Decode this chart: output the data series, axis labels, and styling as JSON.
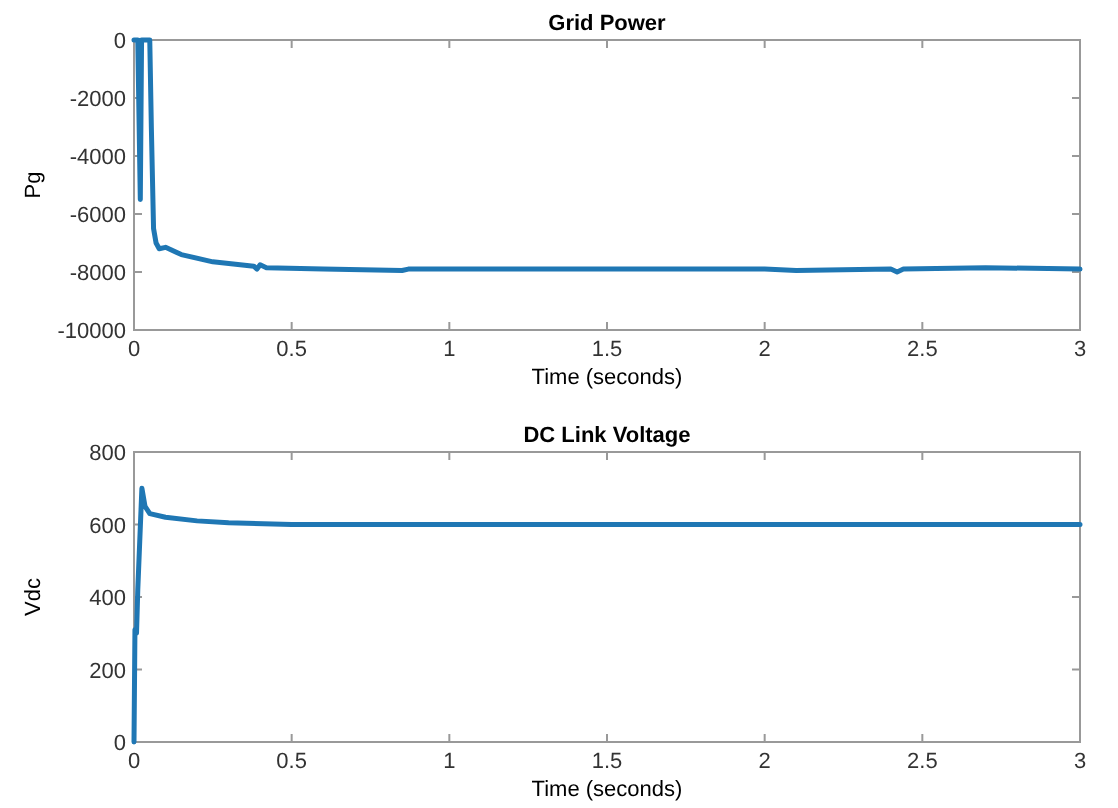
{
  "chart_data": [
    {
      "type": "line",
      "title": "Grid Power",
      "xlabel": "Time (seconds)",
      "ylabel": "Pg",
      "xlim": [
        0,
        3
      ],
      "xticks": [
        0,
        0.5,
        1,
        1.5,
        2,
        2.5,
        3
      ],
      "ylim": [
        -10000,
        0
      ],
      "yticks": [
        -10000,
        -8000,
        -6000,
        -4000,
        -2000,
        0
      ],
      "series": [
        {
          "color": "#1f77b4",
          "x": [
            0,
            0.012,
            0.02,
            0.024,
            0.05,
            0.055,
            0.062,
            0.07,
            0.08,
            0.1,
            0.15,
            0.25,
            0.38,
            0.39,
            0.4,
            0.42,
            0.6,
            0.85,
            0.87,
            1,
            1.5,
            2,
            2.1,
            2.4,
            2.42,
            2.44,
            2.7,
            3
          ],
          "values": [
            0,
            0,
            -5500,
            0,
            0,
            -3000,
            -6500,
            -7000,
            -7200,
            -7150,
            -7400,
            -7650,
            -7800,
            -7900,
            -7750,
            -7850,
            -7900,
            -7950,
            -7900,
            -7900,
            -7900,
            -7900,
            -7950,
            -7900,
            -8000,
            -7900,
            -7850,
            -7900
          ]
        }
      ]
    },
    {
      "type": "line",
      "title": "DC Link Voltage",
      "xlabel": "Time (seconds)",
      "ylabel": "Vdc",
      "xlim": [
        0,
        3
      ],
      "xticks": [
        0,
        0.5,
        1,
        1.5,
        2,
        2.5,
        3
      ],
      "ylim": [
        0,
        800
      ],
      "yticks": [
        0,
        200,
        400,
        600,
        800
      ],
      "series": [
        {
          "color": "#1f77b4",
          "x": [
            0,
            0.003,
            0.008,
            0.012,
            0.025,
            0.035,
            0.05,
            0.1,
            0.2,
            0.3,
            0.5,
            1,
            2,
            3
          ],
          "values": [
            0,
            310,
            300,
            420,
            700,
            650,
            630,
            620,
            610,
            605,
            600,
            600,
            600,
            600
          ]
        }
      ]
    }
  ]
}
